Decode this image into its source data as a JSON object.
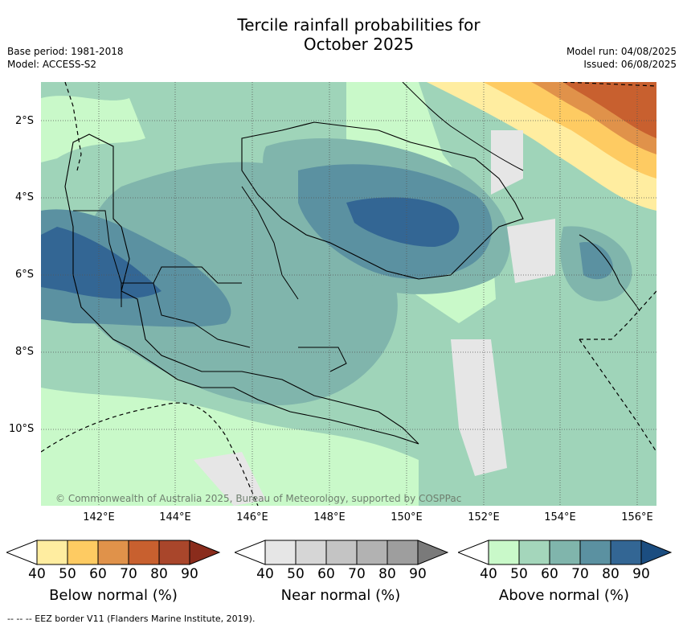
{
  "title_line1": "Tercile rainfall probabilities for",
  "title_line2": "October 2025",
  "base_period": "Base period: 1981-2018",
  "model": "Model: ACCESS-S2",
  "model_run": "Model run: 04/08/2025",
  "issued": "Issued: 06/08/2025",
  "copyright": "© Commonwealth of Australia 2025, Bureau of Meteorology, supported by COSPPac",
  "lat_labels": [
    "2°S",
    "4°S",
    "6°S",
    "8°S",
    "10°S"
  ],
  "lon_labels": [
    "142°E",
    "144°E",
    "146°E",
    "148°E",
    "150°E",
    "152°E",
    "154°E",
    "156°E"
  ],
  "colorbars": [
    {
      "title": "Below normal (%)",
      "ticks": [
        "40",
        "50",
        "60",
        "70",
        "80",
        "90"
      ],
      "colors": [
        "#ffffff",
        "#ffeda0",
        "#fecb62",
        "#e0924a",
        "#c8602f",
        "#a9462b",
        "#8a2c1c"
      ]
    },
    {
      "title": "Near normal (%)",
      "ticks": [
        "40",
        "50",
        "60",
        "70",
        "80",
        "90"
      ],
      "colors": [
        "#ffffff",
        "#e6e6e6",
        "#d6d6d6",
        "#c4c4c4",
        "#b2b2b2",
        "#9e9e9e",
        "#7a7a7a"
      ]
    },
    {
      "title": "Above normal (%)",
      "ticks": [
        "40",
        "50",
        "60",
        "70",
        "80",
        "90"
      ],
      "colors": [
        "#ffffff",
        "#c9f9c9",
        "#a4d6bb",
        "#80b5ac",
        "#5b91a1",
        "#336694",
        "#1b4d80"
      ]
    }
  ],
  "footer": "--  --  -- EEZ border V11 (Flanders Marine Institute, 2019)."
}
